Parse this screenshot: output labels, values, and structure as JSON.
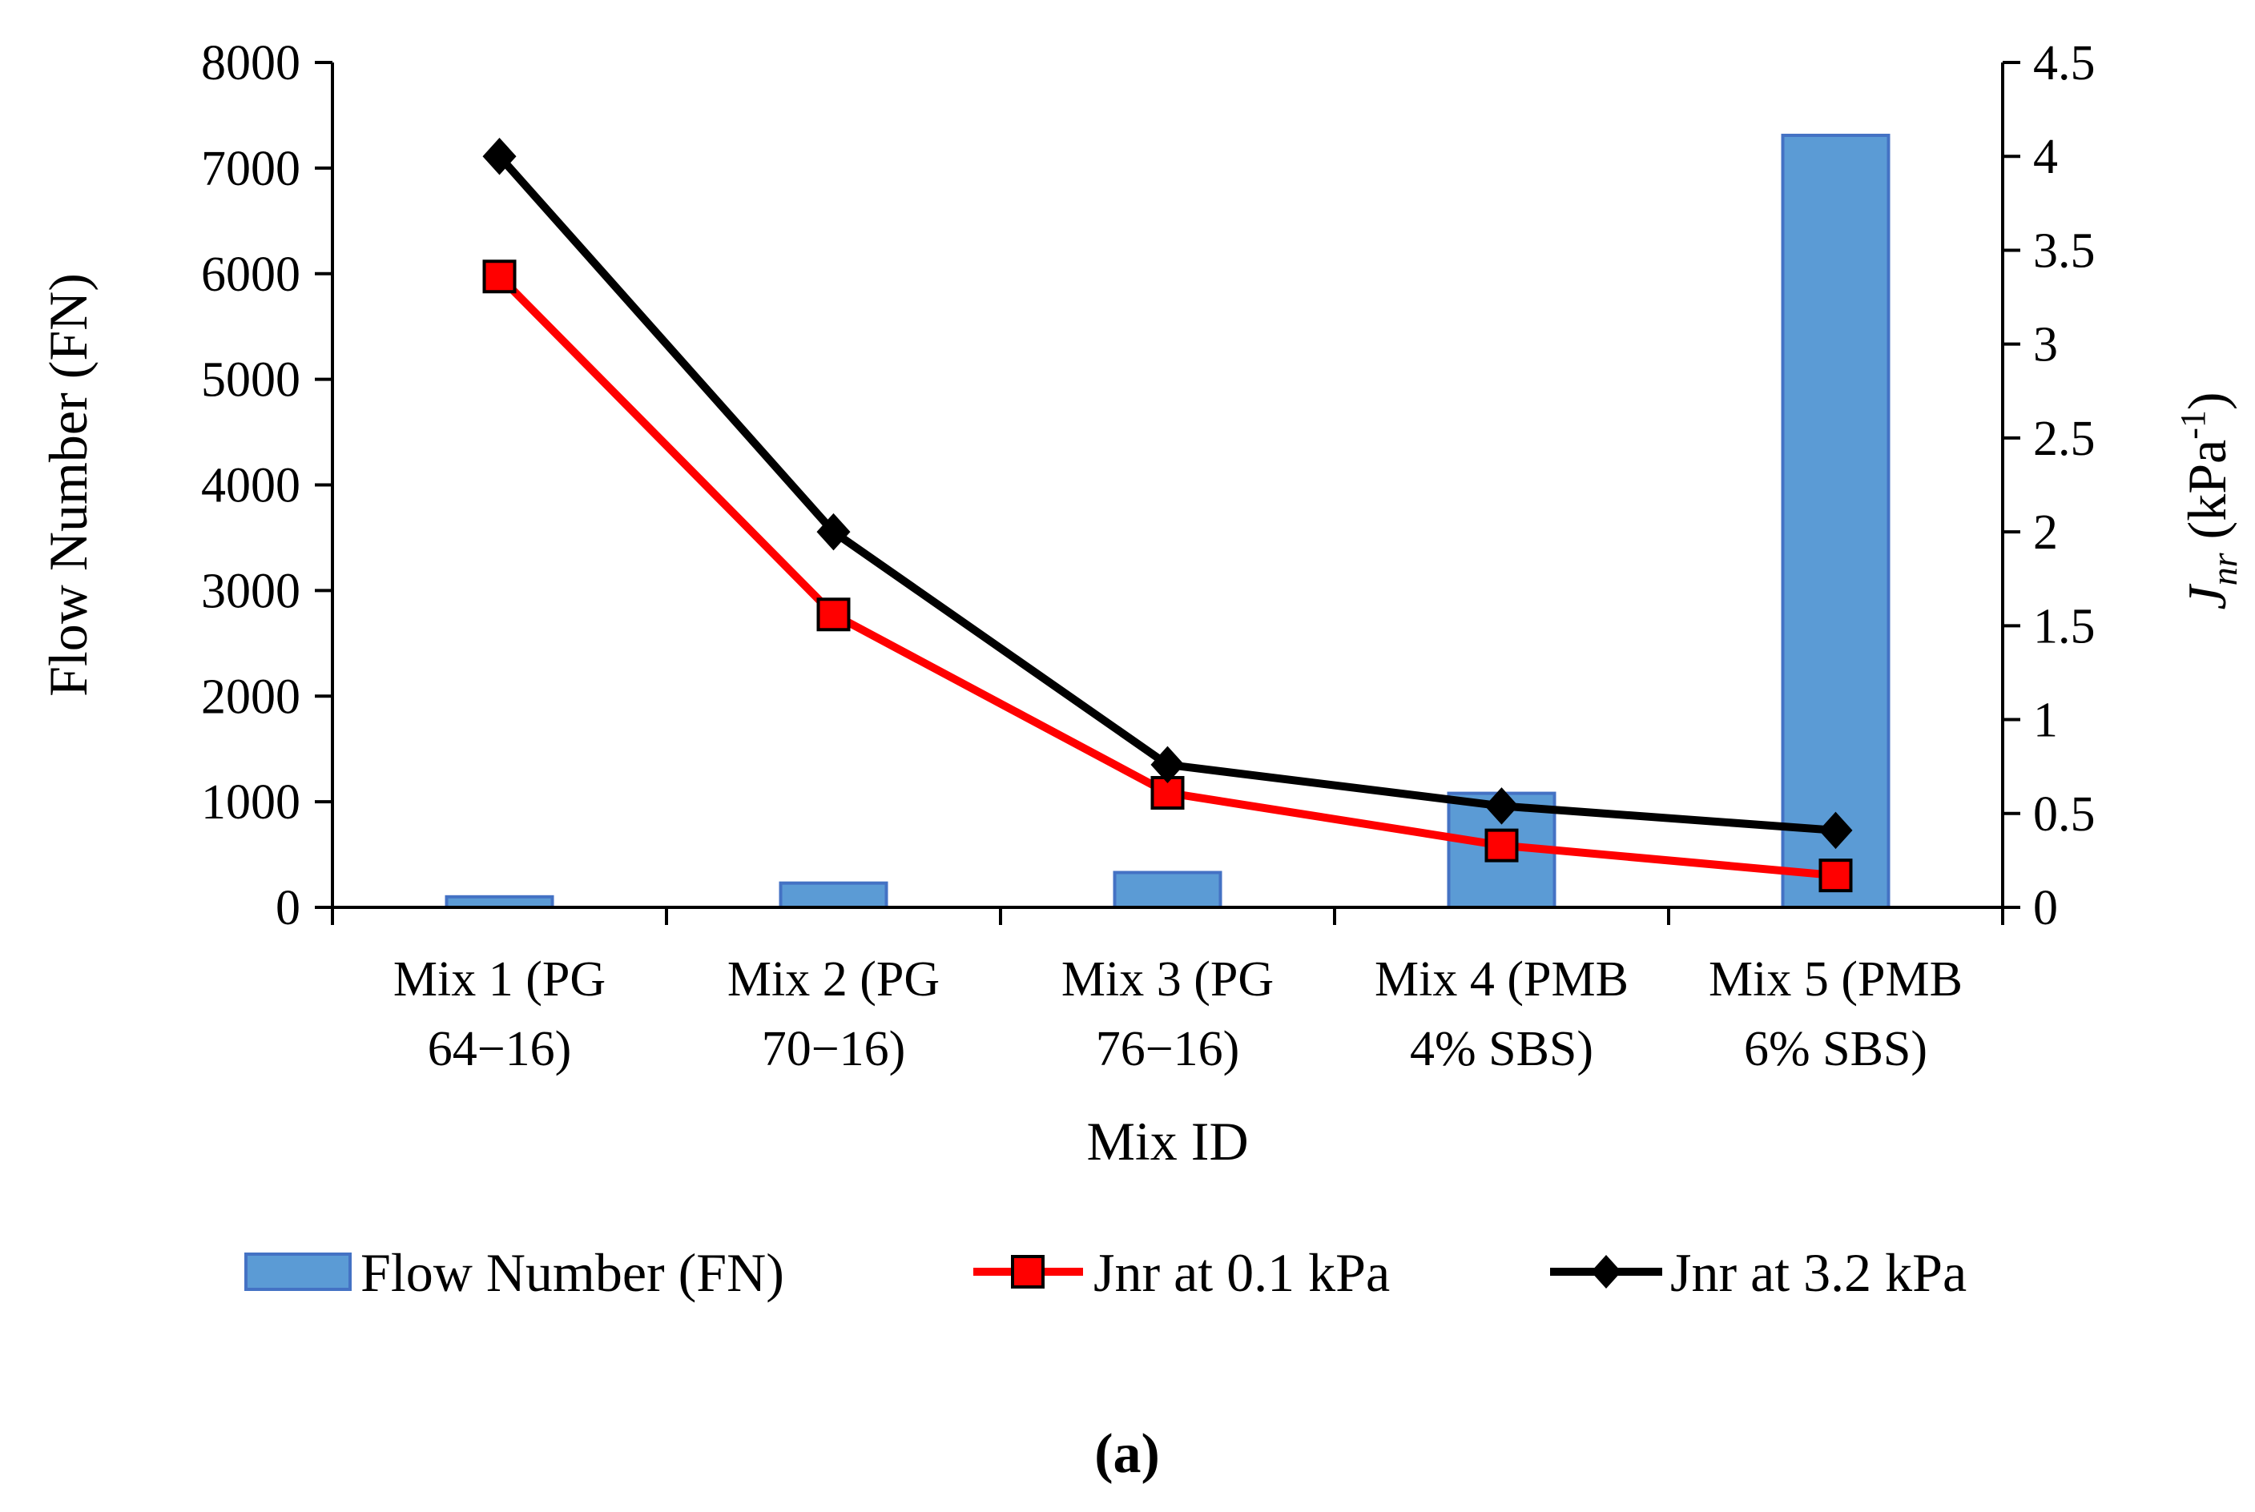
{
  "chart_data": {
    "type": "bar+line",
    "categories": [
      [
        "Mix 1 (PG",
        "64−16)"
      ],
      [
        "Mix 2 (PG",
        "70−16)"
      ],
      [
        "Mix 3 (PG",
        "76−16)"
      ],
      [
        "Mix 4 (PMB",
        "4% SBS)"
      ],
      [
        "Mix 5 (PMB",
        "6% SBS)"
      ]
    ],
    "xlabel": "Mix ID",
    "ylabel": "Flow Number (FN)",
    "y2label": {
      "base": "J",
      "sub": "nr",
      "unit_open": " (kPa",
      "sup": "-1",
      "unit_close": ")"
    },
    "ylim": [
      0,
      8000
    ],
    "y2lim": [
      0,
      4.5
    ],
    "yticks": [
      "0",
      "1000",
      "2000",
      "3000",
      "4000",
      "5000",
      "6000",
      "7000",
      "8000"
    ],
    "y2ticks": [
      "0",
      "0.5",
      "1",
      "1.5",
      "2",
      "2.5",
      "3",
      "3.5",
      "4",
      "4.5"
    ],
    "series": [
      {
        "name": "Flow Number (FN)",
        "kind": "bar",
        "axis": "left",
        "color": "#5B9BD5",
        "edge": "#4472C4",
        "values": [
          100,
          230,
          330,
          1080,
          7310
        ]
      },
      {
        "name": "Jnr at 0.1 kPa",
        "kind": "line",
        "axis": "right",
        "color": "#FF0000",
        "marker": "square",
        "values": [
          3.36,
          1.56,
          0.61,
          0.33,
          0.17
        ]
      },
      {
        "name": "Jnr at 3.2 kPa",
        "kind": "line",
        "axis": "right",
        "color": "#000000",
        "marker": "diamond",
        "values": [
          4.0,
          2.0,
          0.76,
          0.54,
          0.41
        ]
      }
    ],
    "legend_position": "bottom",
    "caption": "(a)"
  }
}
